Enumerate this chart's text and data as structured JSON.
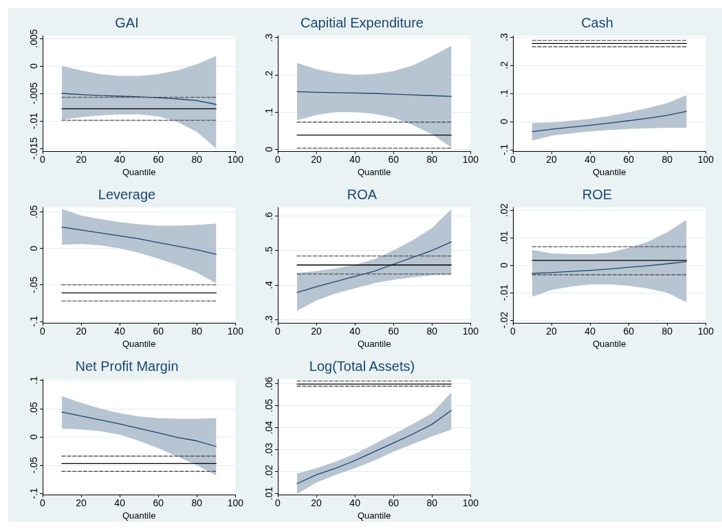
{
  "chart_data": [
    {
      "type": "line",
      "title": "GAI",
      "xlabel": "Quantile",
      "x": [
        10,
        20,
        30,
        40,
        50,
        60,
        70,
        80,
        90
      ],
      "xlim": [
        0,
        100
      ],
      "xticks": [
        0,
        20,
        40,
        60,
        80,
        100
      ],
      "ylim": [
        -0.0155,
        0.0055
      ],
      "yticks": [
        {
          "value": -0.015,
          "label": "-.015"
        },
        {
          "value": -0.01,
          "label": "-.01"
        },
        {
          "value": -0.005,
          "label": "-.005"
        },
        {
          "value": 0,
          "label": "0"
        },
        {
          "value": 0.005,
          "label": ".005"
        }
      ],
      "grid": "y",
      "marker": "none",
      "series": [
        {
          "color": "#1a476f",
          "values": [
            -0.005,
            -0.0052,
            -0.0054,
            -0.0055,
            -0.0056,
            -0.0058,
            -0.006,
            -0.0063,
            -0.007
          ],
          "lower": [
            -0.0098,
            -0.0093,
            -0.009,
            -0.0088,
            -0.0088,
            -0.0092,
            -0.0102,
            -0.012,
            -0.015
          ],
          "upper": [
            0,
            -0.0008,
            -0.0015,
            -0.0018,
            -0.0018,
            -0.0015,
            -0.0008,
            0.0003,
            0.0018
          ]
        },
        {
          "color": "#000000",
          "values": [
            -0.0078,
            -0.0078,
            -0.0078,
            -0.0078,
            -0.0078,
            -0.0078,
            -0.0078,
            -0.0078,
            -0.0078
          ],
          "line_style": "solid"
        },
        {
          "color": "#555555",
          "values": [
            -0.0057,
            -0.0057,
            -0.0057,
            -0.0057,
            -0.0057,
            -0.0057,
            -0.0057,
            -0.0057,
            -0.0057
          ],
          "line_style": "dashed"
        },
        {
          "color": "#555555",
          "values": [
            -0.0099,
            -0.0099,
            -0.0099,
            -0.0099,
            -0.0099,
            -0.0099,
            -0.0099,
            -0.0099,
            -0.0099
          ],
          "line_style": "dashed"
        }
      ]
    },
    {
      "type": "line",
      "title": "Capitial Expenditure",
      "xlabel": "Quantile",
      "x": [
        10,
        20,
        30,
        40,
        50,
        60,
        70,
        80,
        90
      ],
      "xlim": [
        0,
        100
      ],
      "xticks": [
        0,
        20,
        40,
        60,
        80,
        100
      ],
      "ylim": [
        -0.005,
        0.305
      ],
      "yticks": [
        {
          "value": 0,
          "label": "0"
        },
        {
          "value": 0.1,
          "label": ".1"
        },
        {
          "value": 0.2,
          "label": ".2"
        },
        {
          "value": 0.3,
          "label": ".3"
        }
      ],
      "grid": "y",
      "marker": "none",
      "series": [
        {
          "color": "#1a476f",
          "values": [
            0.155,
            0.153,
            0.152,
            0.151,
            0.15,
            0.148,
            0.146,
            0.144,
            0.142
          ],
          "lower": [
            0.078,
            0.092,
            0.1,
            0.1,
            0.095,
            0.085,
            0.065,
            0.04,
            0.005
          ],
          "upper": [
            0.232,
            0.215,
            0.205,
            0.2,
            0.202,
            0.21,
            0.225,
            0.25,
            0.278
          ]
        },
        {
          "color": "#000000",
          "values": [
            0.038,
            0.038,
            0.038,
            0.038,
            0.038,
            0.038,
            0.038,
            0.038,
            0.038
          ],
          "line_style": "solid"
        },
        {
          "color": "#555555",
          "values": [
            0.073,
            0.073,
            0.073,
            0.073,
            0.073,
            0.073,
            0.073,
            0.073,
            0.073
          ],
          "line_style": "dashed"
        },
        {
          "color": "#555555",
          "values": [
            0.003,
            0.003,
            0.003,
            0.003,
            0.003,
            0.003,
            0.003,
            0.003,
            0.003
          ],
          "line_style": "dashed"
        }
      ]
    },
    {
      "type": "line",
      "title": "Cash",
      "xlabel": "Quantile",
      "x": [
        10,
        20,
        30,
        40,
        50,
        60,
        70,
        80,
        90
      ],
      "xlim": [
        0,
        100
      ],
      "xticks": [
        0,
        20,
        40,
        60,
        80,
        100
      ],
      "ylim": [
        -0.105,
        0.305
      ],
      "yticks": [
        {
          "value": -0.1,
          "label": "-.1"
        },
        {
          "value": 0,
          "label": "0"
        },
        {
          "value": 0.1,
          "label": ".1"
        },
        {
          "value": 0.2,
          "label": ".2"
        },
        {
          "value": 0.3,
          "label": ".3"
        }
      ],
      "grid": "y",
      "marker": "none",
      "series": [
        {
          "color": "#1a476f",
          "values": [
            -0.036,
            -0.027,
            -0.02,
            -0.013,
            -0.005,
            0.003,
            0.012,
            0.022,
            0.036
          ],
          "lower": [
            -0.068,
            -0.05,
            -0.042,
            -0.035,
            -0.03,
            -0.026,
            -0.024,
            -0.022,
            -0.022
          ],
          "upper": [
            -0.005,
            -0.003,
            0.003,
            0.01,
            0.02,
            0.033,
            0.048,
            0.065,
            0.094
          ]
        },
        {
          "color": "#000000",
          "values": [
            0.277,
            0.277,
            0.277,
            0.277,
            0.277,
            0.277,
            0.277,
            0.277,
            0.277
          ],
          "line_style": "solid"
        },
        {
          "color": "#555555",
          "values": [
            0.288,
            0.288,
            0.288,
            0.288,
            0.288,
            0.288,
            0.288,
            0.288,
            0.288
          ],
          "line_style": "dashed"
        },
        {
          "color": "#555555",
          "values": [
            0.266,
            0.266,
            0.266,
            0.266,
            0.266,
            0.266,
            0.266,
            0.266,
            0.266
          ],
          "line_style": "dashed"
        }
      ]
    },
    {
      "type": "line",
      "title": "Leverage",
      "xlabel": "Quantile",
      "x": [
        10,
        20,
        30,
        40,
        50,
        60,
        70,
        80,
        90
      ],
      "xlim": [
        0,
        100
      ],
      "xticks": [
        0,
        20,
        40,
        60,
        80,
        100
      ],
      "ylim": [
        -0.102,
        0.056
      ],
      "yticks": [
        {
          "value": -0.1,
          "label": "-.1"
        },
        {
          "value": -0.05,
          "label": "-.05"
        },
        {
          "value": 0,
          "label": "0"
        },
        {
          "value": 0.05,
          "label": ".05"
        }
      ],
      "grid": "y",
      "marker": "none",
      "series": [
        {
          "color": "#1a476f",
          "values": [
            0.029,
            0.025,
            0.021,
            0.017,
            0.013,
            0.008,
            0.003,
            -0.002,
            -0.008
          ],
          "lower": [
            0.005,
            0.006,
            0.004,
            0.0,
            -0.006,
            -0.014,
            -0.023,
            -0.033,
            -0.048
          ],
          "upper": [
            0.054,
            0.045,
            0.04,
            0.036,
            0.033,
            0.031,
            0.031,
            0.032,
            0.034
          ]
        },
        {
          "color": "#000000",
          "values": [
            -0.061,
            -0.061,
            -0.061,
            -0.061,
            -0.061,
            -0.061,
            -0.061,
            -0.061,
            -0.061
          ],
          "line_style": "solid"
        },
        {
          "color": "#555555",
          "values": [
            -0.05,
            -0.05,
            -0.05,
            -0.05,
            -0.05,
            -0.05,
            -0.05,
            -0.05,
            -0.05
          ],
          "line_style": "dashed"
        },
        {
          "color": "#555555",
          "values": [
            -0.072,
            -0.072,
            -0.072,
            -0.072,
            -0.072,
            -0.072,
            -0.072,
            -0.072,
            -0.072
          ],
          "line_style": "dashed"
        }
      ]
    },
    {
      "type": "line",
      "title": "ROA",
      "xlabel": "Quantile",
      "x": [
        10,
        20,
        30,
        40,
        50,
        60,
        70,
        80,
        90
      ],
      "xlim": [
        0,
        100
      ],
      "xticks": [
        0,
        20,
        40,
        60,
        80,
        100
      ],
      "ylim": [
        0.29,
        0.625
      ],
      "yticks": [
        {
          "value": 0.3,
          "label": ".3"
        },
        {
          "value": 0.4,
          "label": ".4"
        },
        {
          "value": 0.5,
          "label": ".5"
        },
        {
          "value": 0.6,
          "label": ".6"
        }
      ],
      "grid": "y",
      "marker": "none",
      "series": [
        {
          "color": "#1a476f",
          "values": [
            0.378,
            0.395,
            0.41,
            0.425,
            0.44,
            0.46,
            0.48,
            0.5,
            0.525
          ],
          "lower": [
            0.325,
            0.355,
            0.375,
            0.39,
            0.405,
            0.415,
            0.422,
            0.428,
            0.43
          ],
          "upper": [
            0.435,
            0.44,
            0.448,
            0.458,
            0.475,
            0.5,
            0.53,
            0.565,
            0.62
          ]
        },
        {
          "color": "#000000",
          "values": [
            0.458,
            0.458,
            0.458,
            0.458,
            0.458,
            0.458,
            0.458,
            0.458,
            0.458
          ],
          "line_style": "solid"
        },
        {
          "color": "#555555",
          "values": [
            0.484,
            0.484,
            0.484,
            0.484,
            0.484,
            0.484,
            0.484,
            0.484,
            0.484
          ],
          "line_style": "dashed"
        },
        {
          "color": "#555555",
          "values": [
            0.432,
            0.432,
            0.432,
            0.432,
            0.432,
            0.432,
            0.432,
            0.432,
            0.432
          ],
          "line_style": "dashed"
        }
      ]
    },
    {
      "type": "line",
      "title": "ROE",
      "xlabel": "Quantile",
      "x": [
        10,
        20,
        30,
        40,
        50,
        60,
        70,
        80,
        90
      ],
      "xlim": [
        0,
        100
      ],
      "xticks": [
        0,
        20,
        40,
        60,
        80,
        100
      ],
      "ylim": [
        -0.021,
        0.021
      ],
      "yticks": [
        {
          "value": -0.02,
          "label": "-.02"
        },
        {
          "value": -0.01,
          "label": "-.01"
        },
        {
          "value": 0,
          "label": "0"
        },
        {
          "value": 0.01,
          "label": ".01"
        },
        {
          "value": 0.02,
          "label": ".02"
        }
      ],
      "grid": "y",
      "marker": "none",
      "series": [
        {
          "color": "#1a476f",
          "values": [
            -0.003,
            -0.0027,
            -0.0023,
            -0.0019,
            -0.0014,
            -0.0008,
            -0.0002,
            0.0005,
            0.0013
          ],
          "lower": [
            -0.0115,
            -0.009,
            -0.0078,
            -0.007,
            -0.007,
            -0.0075,
            -0.0085,
            -0.01,
            -0.0135
          ],
          "upper": [
            0.0055,
            0.0043,
            0.004,
            0.004,
            0.0045,
            0.0063,
            0.0085,
            0.012,
            0.0165
          ]
        },
        {
          "color": "#000000",
          "values": [
            0.0017,
            0.0017,
            0.0017,
            0.0017,
            0.0017,
            0.0017,
            0.0017,
            0.0017,
            0.0017
          ],
          "line_style": "solid"
        },
        {
          "color": "#555555",
          "values": [
            0.0067,
            0.0067,
            0.0067,
            0.0067,
            0.0067,
            0.0067,
            0.0067,
            0.0067,
            0.0067
          ],
          "line_style": "dashed"
        },
        {
          "color": "#555555",
          "values": [
            -0.0035,
            -0.0035,
            -0.0035,
            -0.0035,
            -0.0035,
            -0.0035,
            -0.0035,
            -0.0035,
            -0.0035
          ],
          "line_style": "dashed"
        }
      ]
    },
    {
      "type": "line",
      "title": "Net Profit Margin",
      "xlabel": "Quantile",
      "x": [
        10,
        20,
        30,
        40,
        50,
        60,
        70,
        80,
        90
      ],
      "xlim": [
        0,
        100
      ],
      "xticks": [
        0,
        20,
        40,
        60,
        80,
        100
      ],
      "ylim": [
        -0.102,
        0.102
      ],
      "yticks": [
        {
          "value": -0.1,
          "label": "-.1"
        },
        {
          "value": -0.05,
          "label": "-.05"
        },
        {
          "value": 0,
          "label": "0"
        },
        {
          "value": 0.05,
          "label": ".05"
        },
        {
          "value": 0.1,
          "label": ".1"
        }
      ],
      "grid": "y",
      "marker": "none",
      "series": [
        {
          "color": "#1a476f",
          "values": [
            0.044,
            0.037,
            0.03,
            0.023,
            0.015,
            0.007,
            -0.001,
            -0.007,
            -0.017
          ],
          "lower": [
            0.015,
            0.013,
            0.01,
            0.004,
            -0.007,
            -0.02,
            -0.035,
            -0.05,
            -0.068
          ],
          "upper": [
            0.072,
            0.06,
            0.05,
            0.042,
            0.036,
            0.033,
            0.032,
            0.032,
            0.033
          ]
        },
        {
          "color": "#000000",
          "values": [
            -0.047,
            -0.047,
            -0.047,
            -0.047,
            -0.047,
            -0.047,
            -0.047,
            -0.047,
            -0.047
          ],
          "line_style": "solid"
        },
        {
          "color": "#555555",
          "values": [
            -0.034,
            -0.034,
            -0.034,
            -0.034,
            -0.034,
            -0.034,
            -0.034,
            -0.034,
            -0.034
          ],
          "line_style": "dashed"
        },
        {
          "color": "#555555",
          "values": [
            -0.061,
            -0.061,
            -0.061,
            -0.061,
            -0.061,
            -0.061,
            -0.061,
            -0.061,
            -0.061
          ],
          "line_style": "dashed"
        }
      ]
    },
    {
      "type": "line",
      "title": "Log(Total Assets)",
      "xlabel": "Quantile",
      "x": [
        10,
        20,
        30,
        40,
        50,
        60,
        70,
        80,
        90
      ],
      "xlim": [
        0,
        100
      ],
      "xticks": [
        0,
        20,
        40,
        60,
        80,
        100
      ],
      "ylim": [
        0.0095,
        0.062
      ],
      "yticks": [
        {
          "value": 0.01,
          "label": ".01"
        },
        {
          "value": 0.02,
          "label": ".02"
        },
        {
          "value": 0.03,
          "label": ".03"
        },
        {
          "value": 0.04,
          "label": ".04"
        },
        {
          "value": 0.05,
          "label": ".05"
        },
        {
          "value": 0.06,
          "label": ".06"
        }
      ],
      "grid": "y",
      "marker": "none",
      "series": [
        {
          "color": "#1a476f",
          "values": [
            0.0145,
            0.0185,
            0.0215,
            0.025,
            0.029,
            0.033,
            0.037,
            0.0415,
            0.0478
          ],
          "lower": [
            0.0098,
            0.015,
            0.0185,
            0.0215,
            0.025,
            0.029,
            0.0325,
            0.036,
            0.039
          ],
          "upper": [
            0.019,
            0.0215,
            0.0245,
            0.028,
            0.0325,
            0.037,
            0.0415,
            0.0465,
            0.056
          ]
        },
        {
          "color": "#000000",
          "values": [
            0.0598,
            0.0598,
            0.0598,
            0.0598,
            0.0598,
            0.0598,
            0.0598,
            0.0598,
            0.0598
          ],
          "line_style": "solid"
        },
        {
          "color": "#555555",
          "values": [
            0.0612,
            0.0612,
            0.0612,
            0.0612,
            0.0612,
            0.0612,
            0.0612,
            0.0612,
            0.0612
          ],
          "line_style": "dashed"
        },
        {
          "color": "#555555",
          "values": [
            0.0588,
            0.0588,
            0.0588,
            0.0588,
            0.0588,
            0.0588,
            0.0588,
            0.0588,
            0.0588
          ],
          "line_style": "dashed"
        }
      ]
    }
  ]
}
